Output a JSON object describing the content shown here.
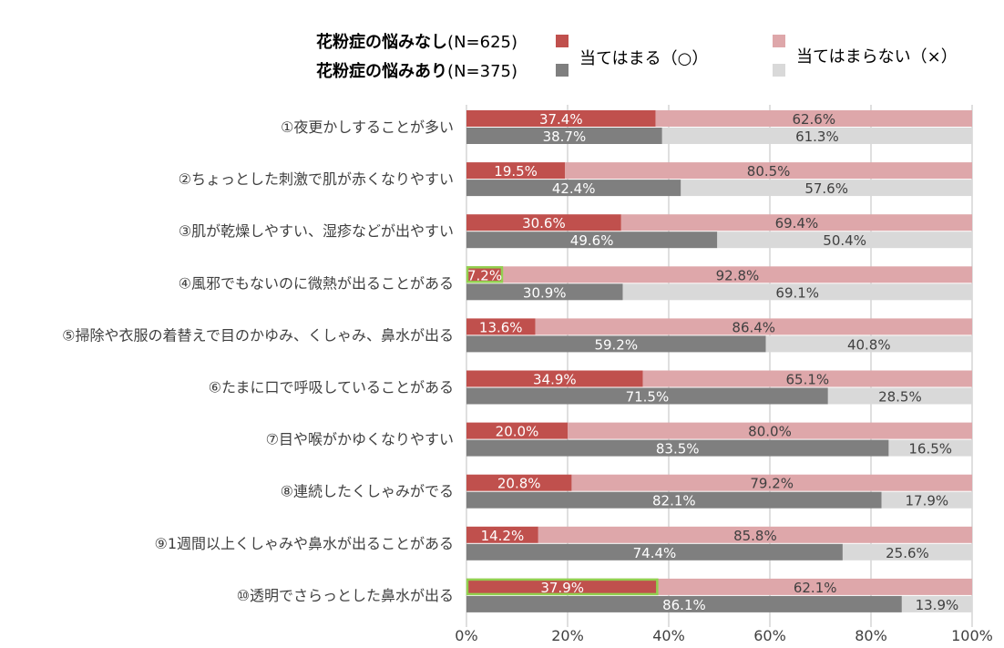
{
  "legend": {
    "groups": [
      {
        "name": "花粉症の悩みなし",
        "n": "(N=625)"
      },
      {
        "name": "花粉症の悩みあり",
        "n": "(N=375)"
      }
    ],
    "answers": [
      {
        "label": "当てはまる（○）"
      },
      {
        "label": "当てはまらない（×）"
      }
    ]
  },
  "colors": {
    "no_yes": "#c0504d",
    "no_no": "#dea7aa",
    "has_yes": "#7f7f7f",
    "has_no": "#d9d9d9",
    "grid": "#bfbfbf",
    "highlight": "#92d050"
  },
  "chart_data": {
    "type": "bar",
    "orientation": "horizontal",
    "stacked": "percent",
    "xlim": [
      0,
      100
    ],
    "x_ticks": [
      "0%",
      "20%",
      "40%",
      "60%",
      "80%",
      "100%"
    ],
    "categories": [
      "①夜更かしすることが多い",
      "②ちょっとした刺激で肌が赤くなりやすい",
      "③肌が乾燥しやすい、湿疹などが出やすい",
      "④風邪でもないのに微熱が出ることがある",
      "⑤掃除や衣服の着替えで目のかゆみ、くしゃみ、鼻水が出る",
      "⑥たまに口で呼吸していることがある",
      "⑦目や喉がかゆくなりやすい",
      "⑧連続したくしゃみがでる",
      "⑨1週間以上くしゃみや鼻水が出ることがある",
      "⑩透明でさらっとした鼻水が出る"
    ],
    "series": [
      {
        "group": "花粉症の悩みなし",
        "answer": "当てはまる（○）",
        "values": [
          37.4,
          19.5,
          30.6,
          7.2,
          13.6,
          34.9,
          20.0,
          20.8,
          14.2,
          37.9
        ]
      },
      {
        "group": "花粉症の悩みなし",
        "answer": "当てはまらない（×）",
        "values": [
          62.6,
          80.5,
          69.4,
          92.8,
          86.4,
          65.1,
          80.0,
          79.2,
          85.8,
          62.1
        ]
      },
      {
        "group": "花粉症の悩みあり",
        "answer": "当てはまる（○）",
        "values": [
          38.7,
          42.4,
          49.6,
          30.9,
          59.2,
          71.5,
          83.5,
          82.1,
          74.4,
          86.1
        ]
      },
      {
        "group": "花粉症の悩みあり",
        "answer": "当てはまらない（×）",
        "values": [
          61.3,
          57.6,
          50.4,
          69.1,
          40.8,
          28.5,
          16.5,
          17.9,
          25.6,
          13.9
        ]
      }
    ],
    "highlighted_bars": [
      {
        "category_index": 3,
        "group": "花粉症の悩みなし",
        "answer": "当てはまる（○）"
      },
      {
        "category_index": 9,
        "group": "花粉症の悩みなし",
        "answer": "当てはまる（○）"
      }
    ]
  }
}
